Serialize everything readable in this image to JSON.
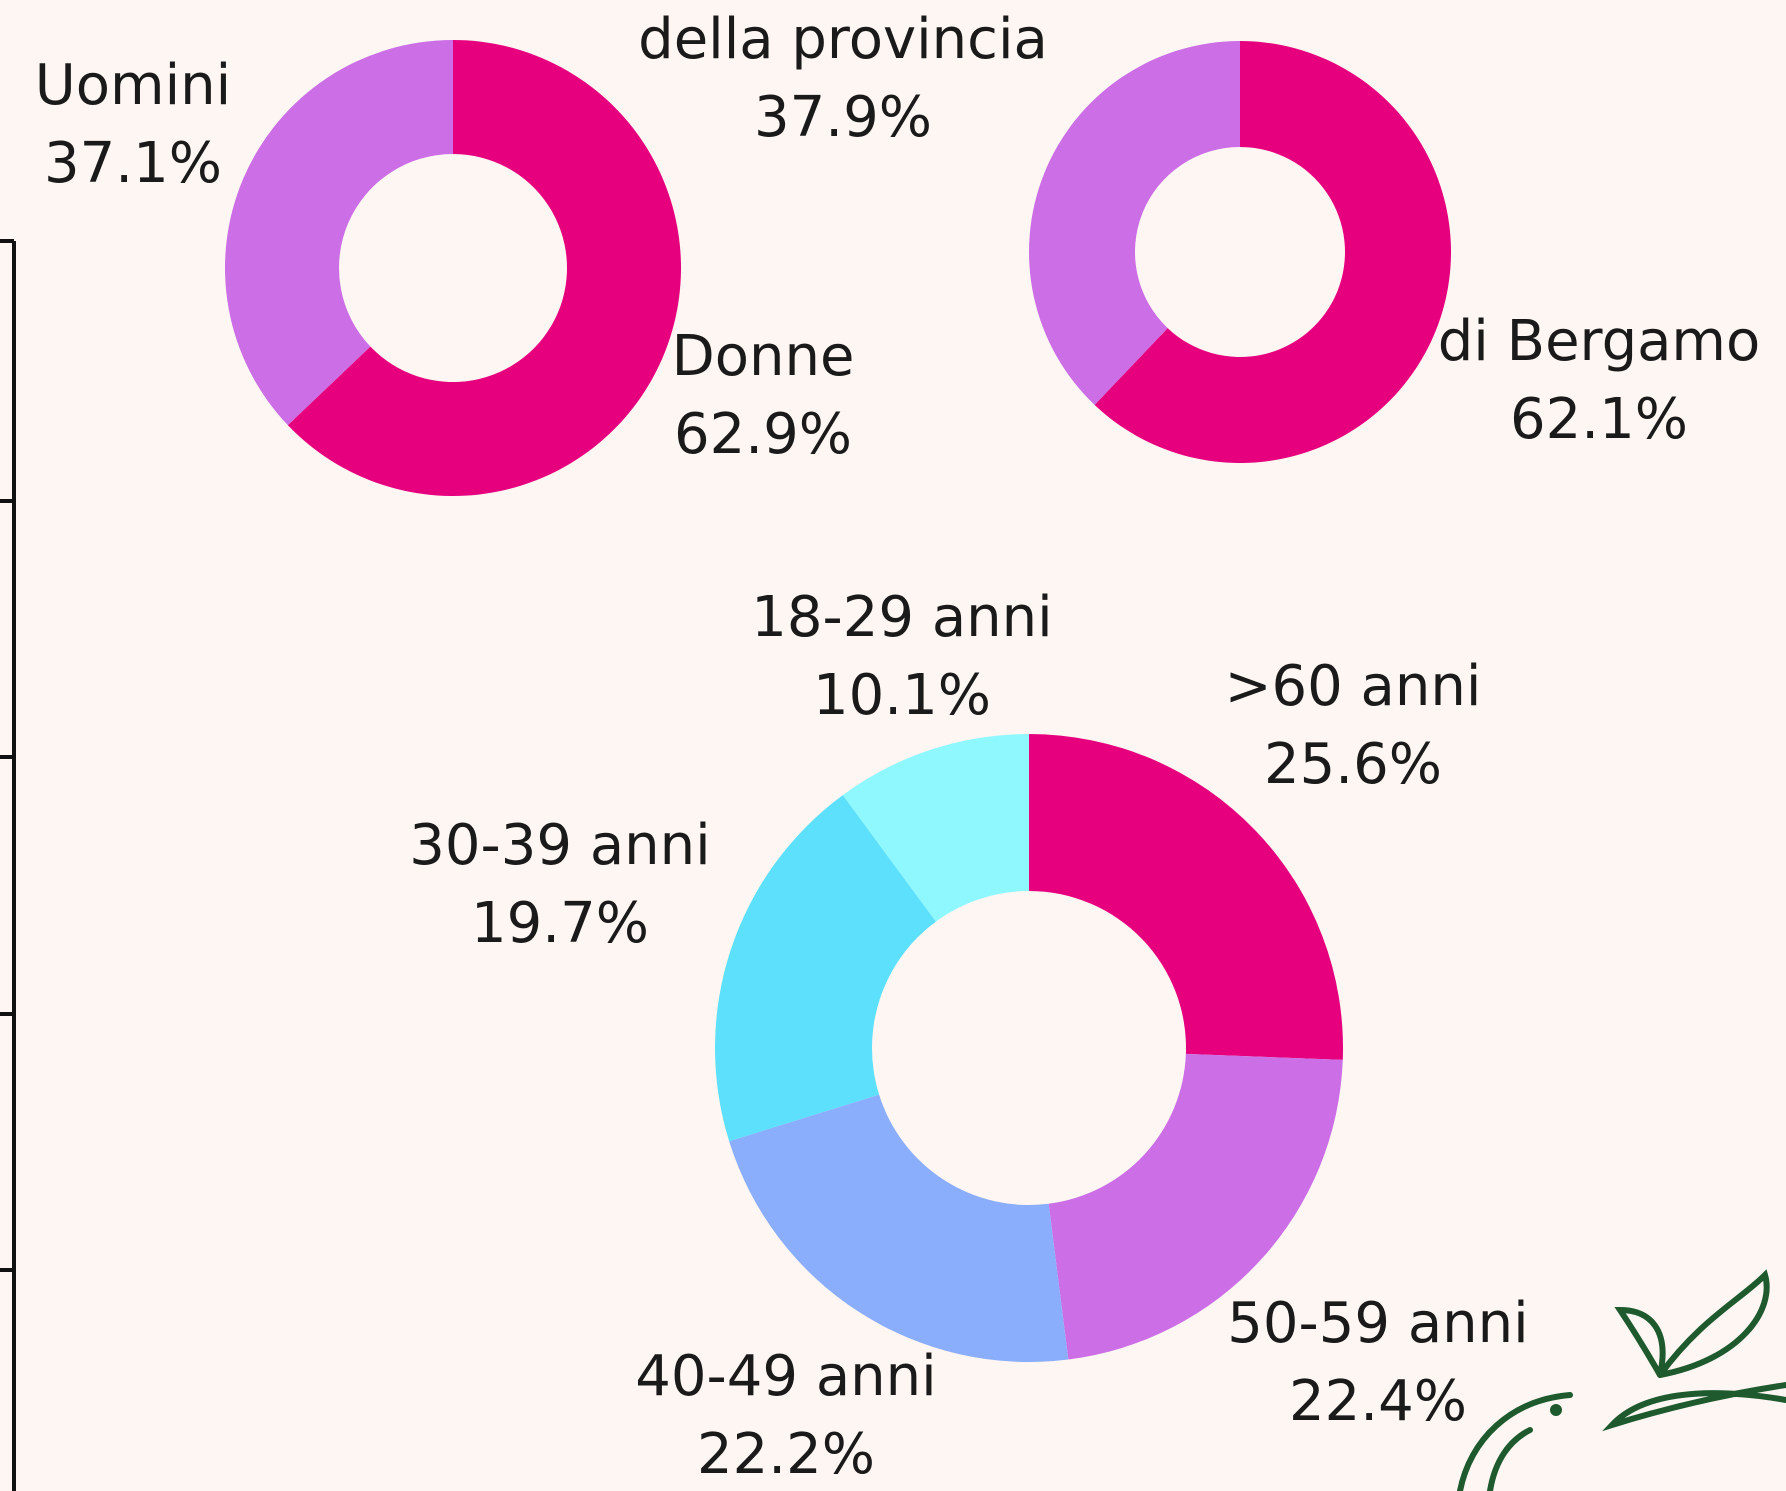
{
  "chart_data": [
    {
      "type": "pie",
      "categories": [
        "Donne",
        "Uomini"
      ],
      "values": [
        62.9,
        37.1
      ],
      "value_labels": [
        "62.9%",
        "37.1%"
      ],
      "colors": [
        "#e6007e",
        "#cc6ee6"
      ]
    },
    {
      "type": "pie",
      "categories": [
        "di Bergamo",
        "della provincia"
      ],
      "values": [
        62.1,
        37.9
      ],
      "value_labels": [
        "62.1%",
        "37.9%"
      ],
      "colors": [
        "#e6007e",
        "#cc6ee6"
      ]
    },
    {
      "type": "pie",
      "categories": [
        ">60 anni",
        "50-59 anni",
        "40-49 anni",
        "30-39 anni",
        "18-29 anni"
      ],
      "values": [
        25.6,
        22.4,
        22.2,
        19.7,
        10.1
      ],
      "value_labels": [
        "25.6%",
        "22.4%",
        "22.2%",
        "19.7%",
        "10.1%"
      ],
      "colors": [
        "#e6007e",
        "#cc6ee6",
        "#8aaefc",
        "#5ce0fc",
        "#8ff8ff"
      ]
    }
  ]
}
